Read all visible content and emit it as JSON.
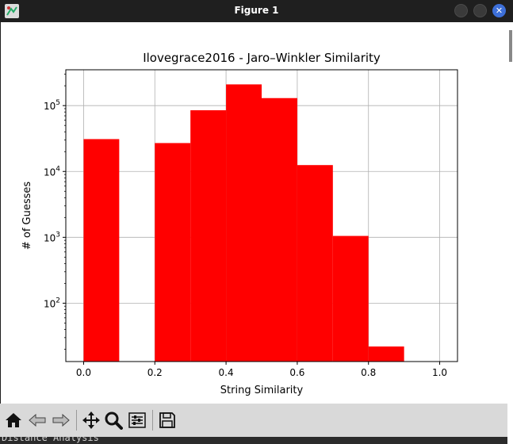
{
  "window": {
    "title": "Figure 1",
    "close_symbol": "✕"
  },
  "chart_data": {
    "type": "bar",
    "title": "Ilovegrace2016 - Jaro–Winkler Similarity",
    "xlabel": "String Similarity",
    "ylabel": "# of Guesses",
    "xlim": [
      -0.05,
      1.05
    ],
    "ylim": [
      13,
      350000
    ],
    "yscale": "log",
    "grid": true,
    "bar_color": "#ff0000",
    "bin_width": 0.1,
    "bins": [
      {
        "x": 0.0,
        "value": 31000
      },
      {
        "x": 0.1,
        "value": 0
      },
      {
        "x": 0.2,
        "value": 27000
      },
      {
        "x": 0.3,
        "value": 85000
      },
      {
        "x": 0.4,
        "value": 210000
      },
      {
        "x": 0.5,
        "value": 130000
      },
      {
        "x": 0.6,
        "value": 12500
      },
      {
        "x": 0.7,
        "value": 1050
      },
      {
        "x": 0.8,
        "value": 22
      },
      {
        "x": 0.9,
        "value": 0
      }
    ],
    "xticks": [
      {
        "value": 0.0,
        "label": "0.0"
      },
      {
        "value": 0.2,
        "label": "0.2"
      },
      {
        "value": 0.4,
        "label": "0.4"
      },
      {
        "value": 0.6,
        "label": "0.6"
      },
      {
        "value": 0.8,
        "label": "0.8"
      },
      {
        "value": 1.0,
        "label": "1.0"
      }
    ],
    "yticks": [
      {
        "value": 100,
        "base": "10",
        "exp": "2"
      },
      {
        "value": 1000,
        "base": "10",
        "exp": "3"
      },
      {
        "value": 10000,
        "base": "10",
        "exp": "4"
      },
      {
        "value": 100000,
        "base": "10",
        "exp": "5"
      }
    ]
  },
  "toolbar": {
    "buttons": [
      {
        "name": "home-icon"
      },
      {
        "name": "back-arrow-icon"
      },
      {
        "name": "forward-arrow-icon"
      },
      {
        "name": "pan-icon"
      },
      {
        "name": "zoom-icon"
      },
      {
        "name": "configure-subplots-icon"
      },
      {
        "name": "save-icon"
      }
    ]
  },
  "terminal": {
    "text": "Distance Analysis"
  }
}
